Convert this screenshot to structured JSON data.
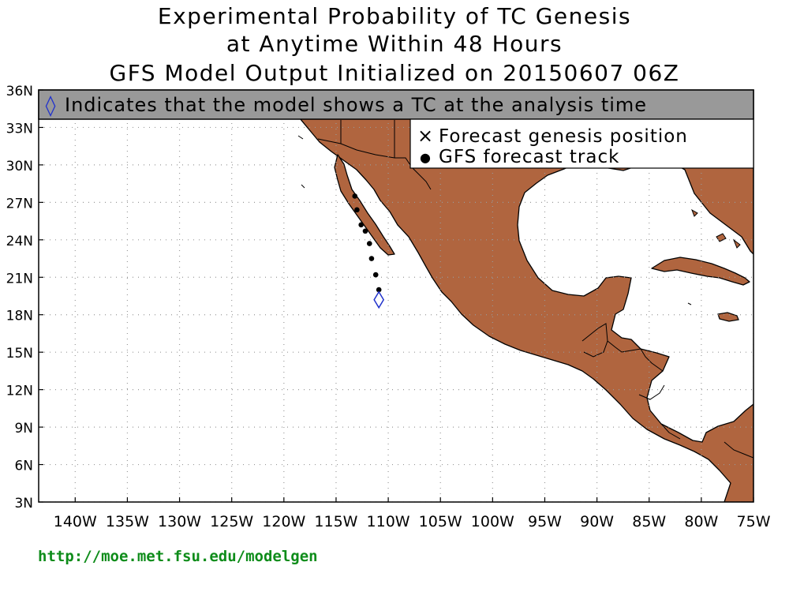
{
  "title": {
    "line1": "Experimental Probability of TC Genesis",
    "line2": "at Anytime Within 48 Hours",
    "line3": "GFS Model Output Initialized on 20150607 06Z"
  },
  "banner": {
    "symbol": "◊",
    "text": "Indicates that the model shows a TC at the analysis time"
  },
  "legend": {
    "genesis_symbol": "×",
    "genesis_label": "Forecast genesis position",
    "track_symbol": "●",
    "track_label": "GFS forecast track"
  },
  "axes": {
    "lon_ticks": [
      "140W",
      "135W",
      "130W",
      "125W",
      "120W",
      "115W",
      "110W",
      "105W",
      "100W",
      "95W",
      "90W",
      "85W",
      "80W",
      "75W"
    ],
    "lat_ticks": [
      "36N",
      "33N",
      "30N",
      "27N",
      "24N",
      "21N",
      "18N",
      "15N",
      "12N",
      "9N",
      "6N",
      "3N"
    ],
    "lon_range": [
      -143.5,
      -75
    ],
    "lat_range": [
      3,
      36
    ]
  },
  "analysis_position": {
    "lon": -110.9,
    "lat": 19.2
  },
  "track_points": [
    {
      "lon": -110.9,
      "lat": 20.0
    },
    {
      "lon": -111.2,
      "lat": 21.2
    },
    {
      "lon": -111.6,
      "lat": 22.5
    },
    {
      "lon": -111.8,
      "lat": 23.7
    },
    {
      "lon": -112.2,
      "lat": 24.7
    },
    {
      "lon": -112.6,
      "lat": 25.2
    },
    {
      "lon": -113.0,
      "lat": 26.4
    },
    {
      "lon": -113.2,
      "lat": 27.5
    }
  ],
  "colors": {
    "land": "#b0653f",
    "banner": "#999999",
    "analysis_marker": "#2233cc",
    "grid": "#999999",
    "url": "#0e8c1a"
  },
  "footer": {
    "url": "http://moe.met.fsu.edu/modelgen"
  }
}
